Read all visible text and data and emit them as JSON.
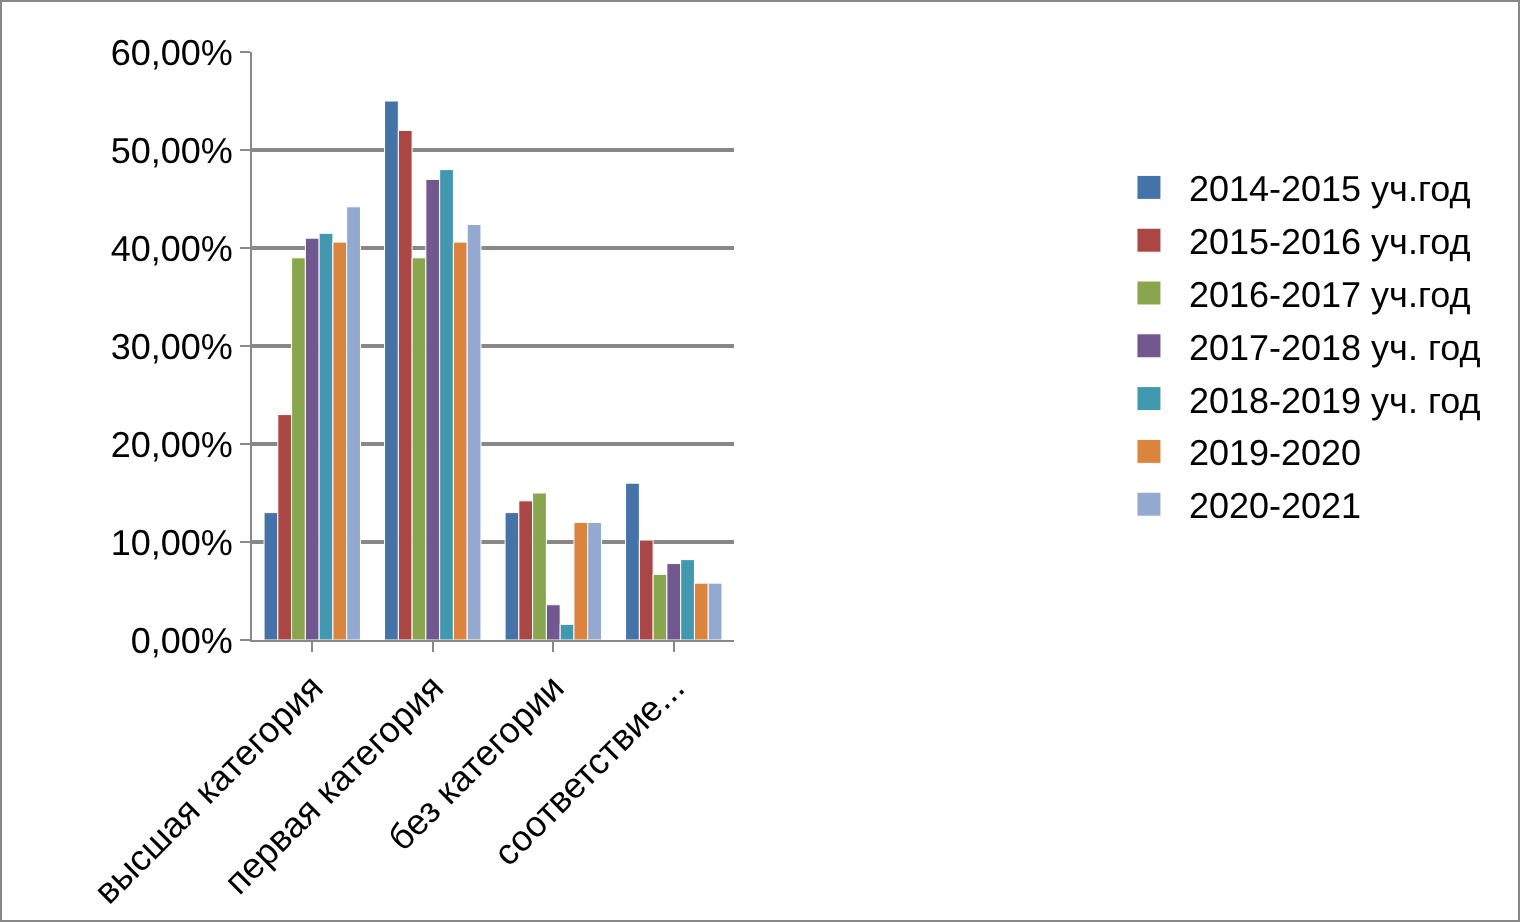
{
  "chart_data": {
    "type": "bar",
    "categories": [
      "высшая категория",
      "первая категория",
      "без категории",
      "соответствие..."
    ],
    "series": [
      {
        "name": "2014-2015 уч.год",
        "color": "#4572a7",
        "values": [
          13,
          55,
          13,
          16
        ]
      },
      {
        "name": "2015-2016 уч.год",
        "color": "#aa4643",
        "values": [
          23,
          52,
          14.2,
          10.2
        ]
      },
      {
        "name": "2016-2017 уч.год",
        "color": "#89a54e",
        "values": [
          39,
          39,
          15,
          6.7
        ]
      },
      {
        "name": "2017-2018 уч. год",
        "color": "#71588f",
        "values": [
          41,
          47,
          3.6,
          7.8
        ]
      },
      {
        "name": "2018-2019 уч. год",
        "color": "#4198af",
        "values": [
          41.5,
          48,
          1.6,
          8.2
        ]
      },
      {
        "name": "2019-2020",
        "color": "#db843d",
        "values": [
          40.6,
          40.6,
          12,
          5.8
        ]
      },
      {
        "name": "2020-2021",
        "color": "#93a9cf",
        "values": [
          44.2,
          42.4,
          12,
          5.8
        ]
      }
    ],
    "ylim": [
      0,
      60
    ],
    "yticks": [
      {
        "value": 0,
        "label": "0,00%"
      },
      {
        "value": 10,
        "label": "10,00%"
      },
      {
        "value": 20,
        "label": "20,00%"
      },
      {
        "value": 30,
        "label": "30,00%"
      },
      {
        "value": 40,
        "label": "40,00%"
      },
      {
        "value": 50,
        "label": "50,00%"
      },
      {
        "value": 60,
        "label": "60,00%"
      }
    ],
    "grid": "y",
    "legend": "right"
  }
}
